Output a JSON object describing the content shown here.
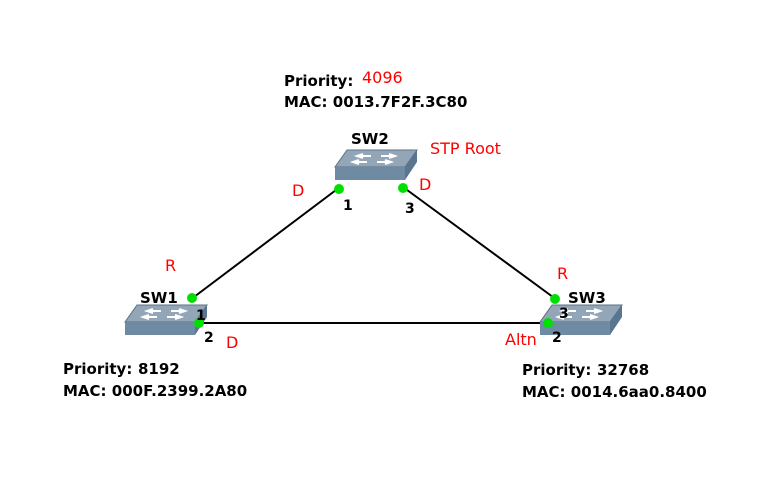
{
  "colors": {
    "label_accent": "#ff0000",
    "port_dot": "#00e000",
    "link": "#000000",
    "switch_top": "#93a6b8",
    "switch_front": "#6f8aa3"
  },
  "switches": {
    "sw1": {
      "name": "SW1",
      "priority_label": "Priority:",
      "priority": "8192",
      "mac": "MAC: 000F.2399.2A80"
    },
    "sw2": {
      "name": "SW2",
      "priority_label": "Priority:",
      "priority": "4096",
      "mac": "MAC: 0013.7F2F.3C80",
      "role": "STP Root"
    },
    "sw3": {
      "name": "SW3",
      "priority_label": "Priority:",
      "priority": "32768",
      "mac": "MAC: 0014.6aa0.8400"
    }
  },
  "ports": {
    "sw2_p1": {
      "num": "1",
      "role": "D"
    },
    "sw2_p3": {
      "num": "3",
      "role": "D"
    },
    "sw1_p1": {
      "num": "1",
      "role": "R"
    },
    "sw1_p2": {
      "num": "2",
      "role": "D"
    },
    "sw3_p3": {
      "num": "3",
      "role": "R"
    },
    "sw3_p2": {
      "num": "2",
      "role": "Altn"
    }
  }
}
